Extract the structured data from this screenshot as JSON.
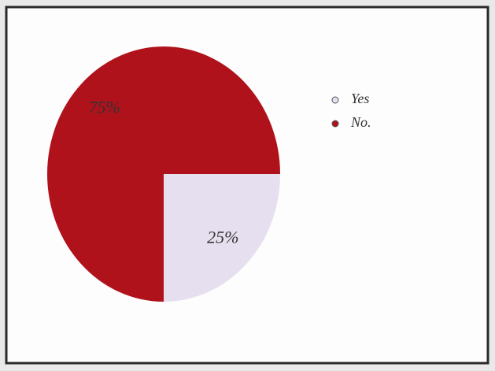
{
  "chart_data": {
    "type": "pie",
    "categories": [
      "Yes",
      "No."
    ],
    "values": [
      25,
      75
    ],
    "value_labels": [
      "25%",
      "75%"
    ],
    "colors": [
      "#e6dff0",
      "#b0121b"
    ]
  }
}
